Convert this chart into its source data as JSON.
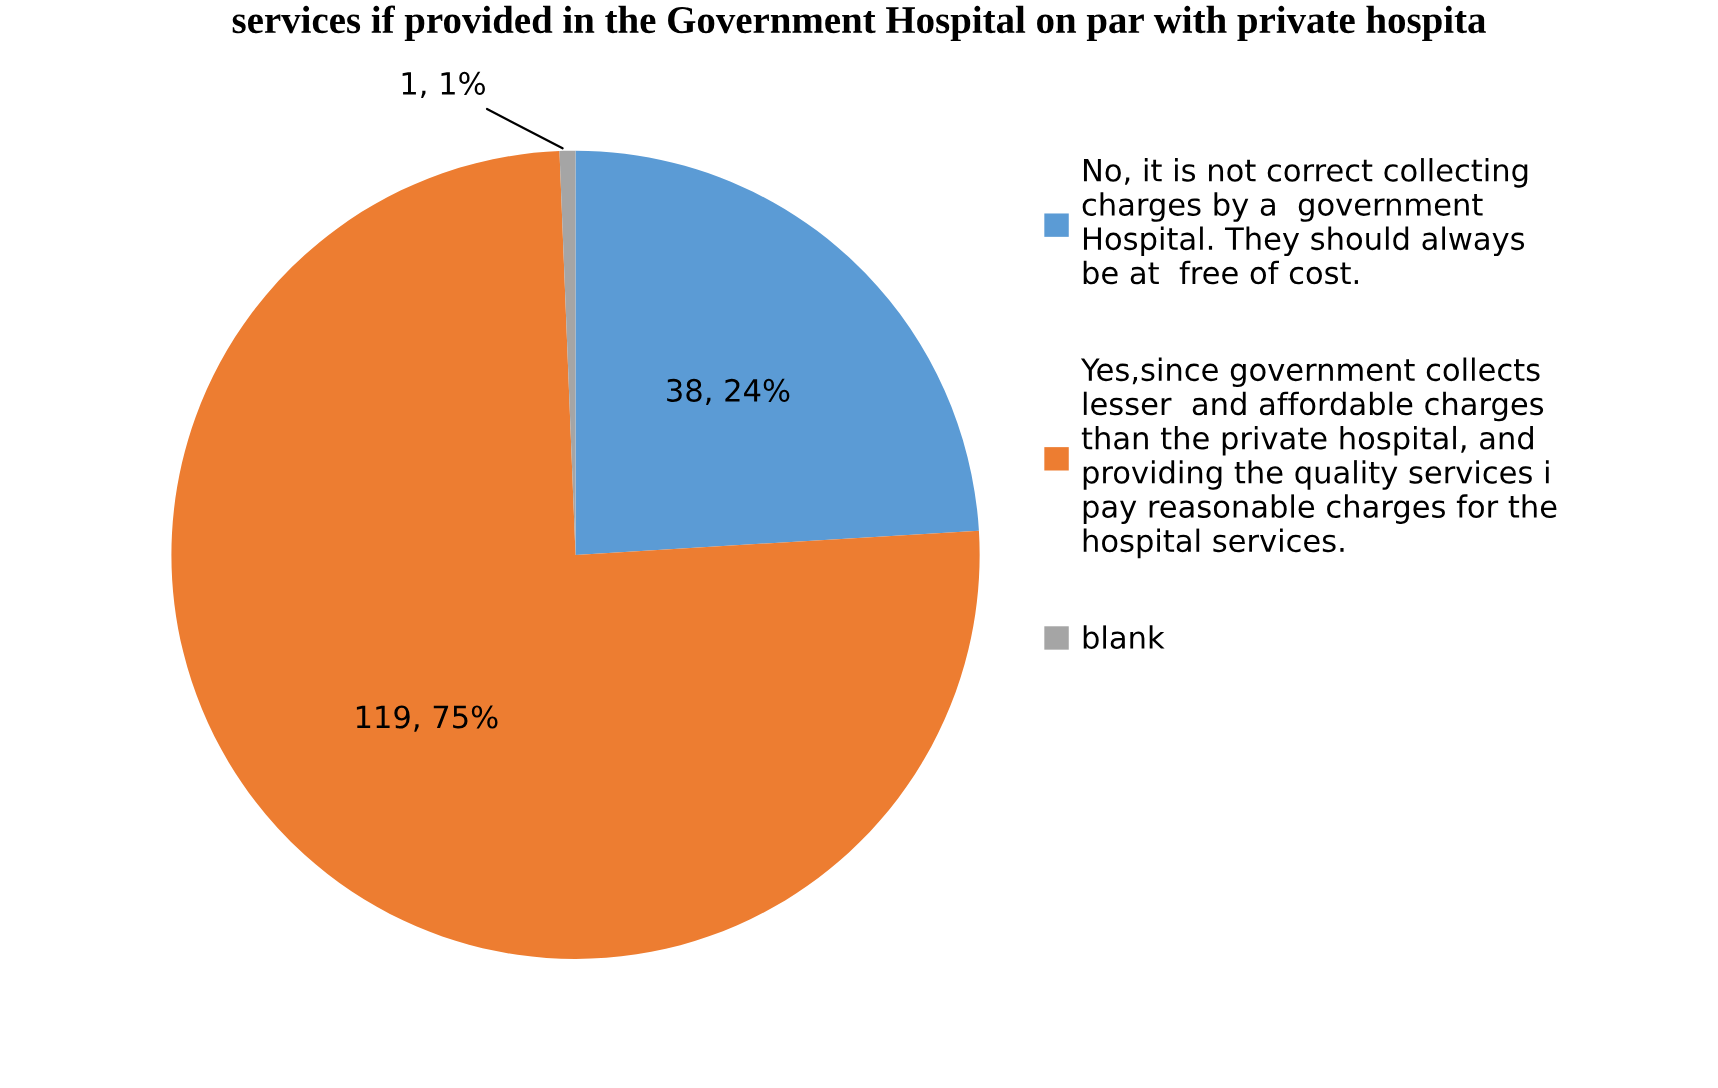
{
  "chart_data": {
    "type": "pie",
    "title": "services if provided in the Government Hospital on par with private hospita",
    "categories": [
      "No, it is not correct collecting\ncharges by a  government\nHospital. They should always\nbe at  free of cost.",
      "Yes,since government collects\nlesser  and affordable charges\nthan the private hospital, and\nproviding the quality services i\npay reasonable charges for the\nhospital services.",
      "blank"
    ],
    "values": [
      38,
      119,
      1
    ],
    "colors": [
      "#5b9bd5",
      "#ed7d31",
      "#a5a5a5"
    ],
    "value_labels": [
      "38, 24%",
      "119, 75%",
      "1, 1%"
    ],
    "legend": "right"
  }
}
